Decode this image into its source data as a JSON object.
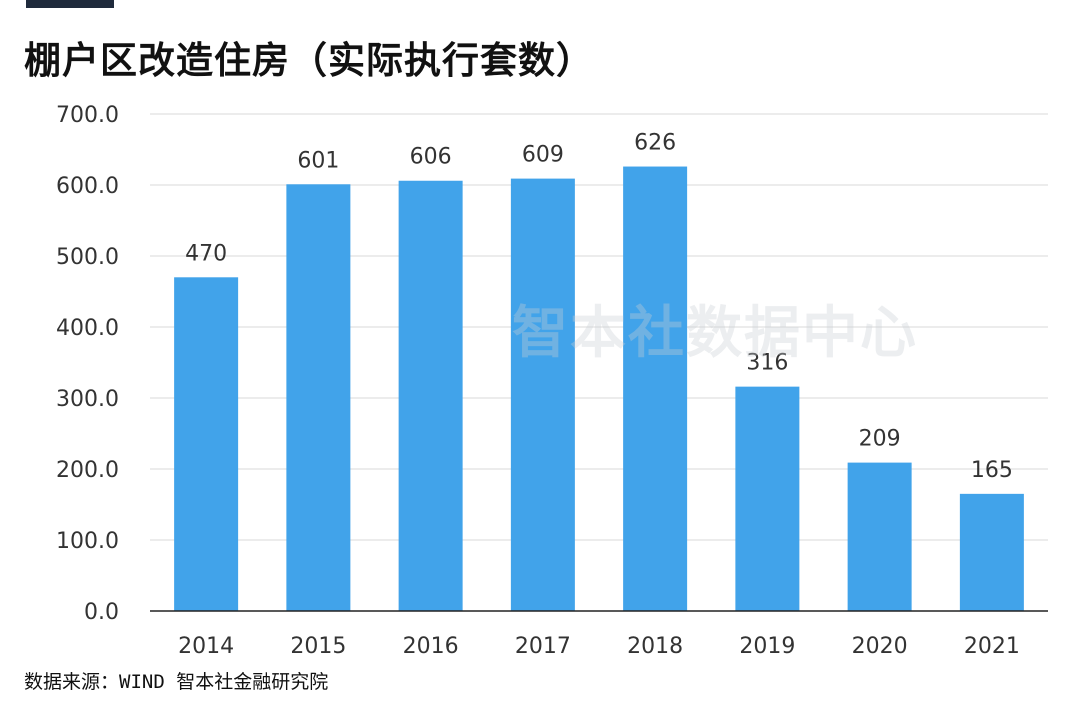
{
  "header": {
    "title": "棚户区改造住房（实际执行套数）"
  },
  "footer": {
    "source": "数据来源：WIND 智本社金融研究院"
  },
  "watermark": {
    "text": "智本社数据中心"
  },
  "colors": {
    "bar": "#41a3ea",
    "accent": "#1f2a3c",
    "grid": "#e6e6e6",
    "axis": "#222222"
  },
  "chart_data": {
    "type": "bar",
    "title": "棚户区改造住房（实际执行套数）",
    "xlabel": "",
    "ylabel": "",
    "categories": [
      "2014",
      "2015",
      "2016",
      "2017",
      "2018",
      "2019",
      "2020",
      "2021"
    ],
    "values": [
      470,
      601,
      606,
      609,
      626,
      316,
      209,
      165
    ],
    "value_labels": [
      "470",
      "601",
      "606",
      "609",
      "626",
      "316",
      "209",
      "165"
    ],
    "ylim": [
      0,
      700
    ],
    "yticks": [
      0,
      100,
      200,
      300,
      400,
      500,
      600,
      700
    ],
    "ytick_labels": [
      "0.0",
      "100.0",
      "200.0",
      "300.0",
      "400.0",
      "500.0",
      "600.0",
      "700.0"
    ],
    "grid": true,
    "legend": "none"
  }
}
